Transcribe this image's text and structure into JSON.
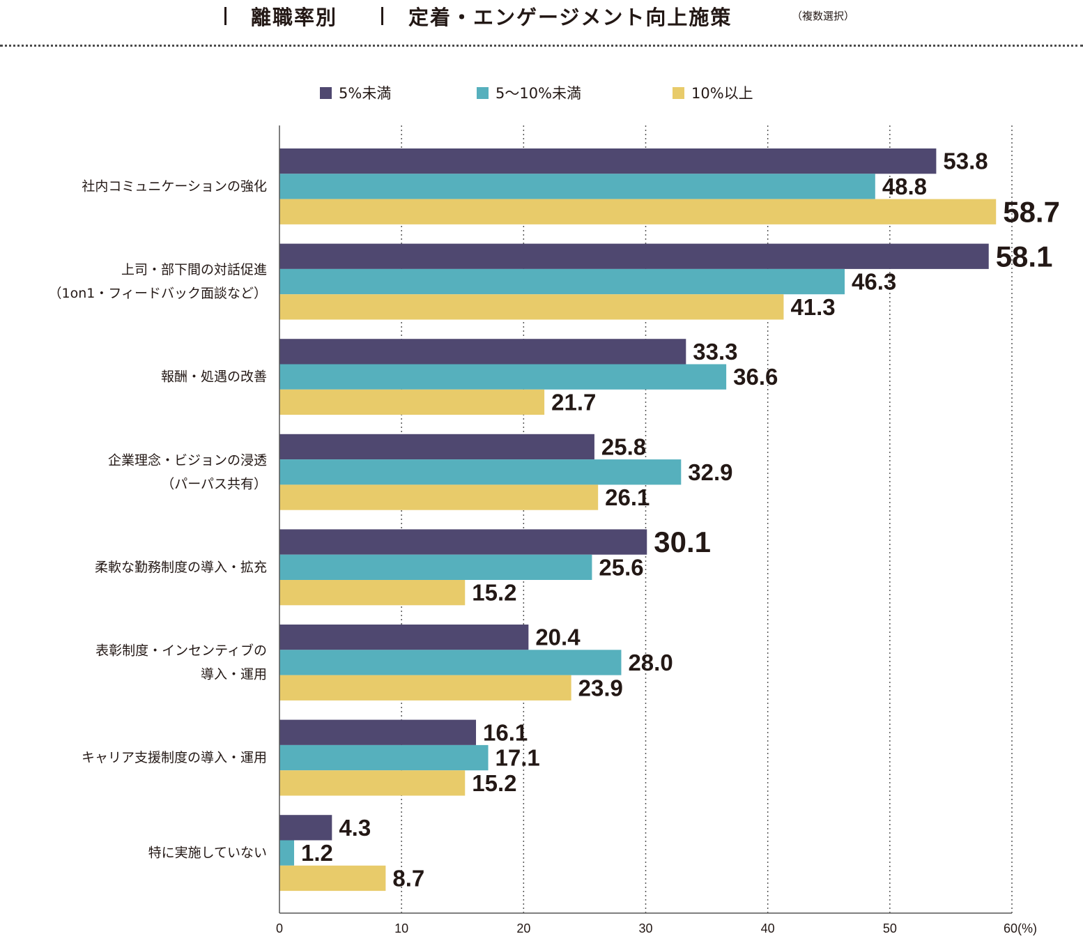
{
  "header": {
    "section_label": "離職率別",
    "title": "定着・エンゲージメント向上施策",
    "note": "（複数選択）"
  },
  "colors": {
    "series_1": "#4f4870",
    "series_2": "#56b0bd",
    "series_3": "#e8cb6a",
    "highlight_label": "#b5141a",
    "text": "#231815"
  },
  "chart_data": {
    "type": "bar",
    "orientation": "horizontal",
    "title": "離職率別 定着・エンゲージメント向上施策（複数選択）",
    "xlabel": "(%)",
    "ylabel": "",
    "xlim": [
      0,
      60
    ],
    "x_ticks": [
      "0",
      "10",
      "20",
      "30",
      "40",
      "50",
      "60"
    ],
    "x_unit": "(%)",
    "grid": "vertical dotted",
    "legend_position": "top",
    "categories": [
      [
        "社内コミュニケーションの強化"
      ],
      [
        "上司・部下間の対話促進",
        "（1on1・フィードバック面談など）"
      ],
      [
        "報酬・処遇の改善"
      ],
      [
        "企業理念・ビジョンの浸透",
        "（パーパス共有）"
      ],
      [
        "柔軟な勤務制度の導入・拡充"
      ],
      [
        "表彰制度・インセンティブの",
        "導入・運用"
      ],
      [
        "キャリア支援制度の導入・運用"
      ],
      [
        "特に実施していない"
      ]
    ],
    "series": [
      {
        "name": "5%未満",
        "values": [
          53.8,
          58.1,
          33.3,
          25.8,
          30.1,
          20.4,
          16.1,
          4.3
        ]
      },
      {
        "name": "5〜10%未満",
        "values": [
          48.8,
          46.3,
          36.6,
          32.9,
          25.6,
          28.0,
          17.1,
          1.2
        ]
      },
      {
        "name": "10%以上",
        "values": [
          58.7,
          41.3,
          21.7,
          26.1,
          15.2,
          23.9,
          15.2,
          8.7
        ]
      }
    ],
    "highlighted": [
      {
        "series": 2,
        "category": 0
      },
      {
        "series": 0,
        "category": 1
      },
      {
        "series": 0,
        "category": 4
      }
    ]
  }
}
